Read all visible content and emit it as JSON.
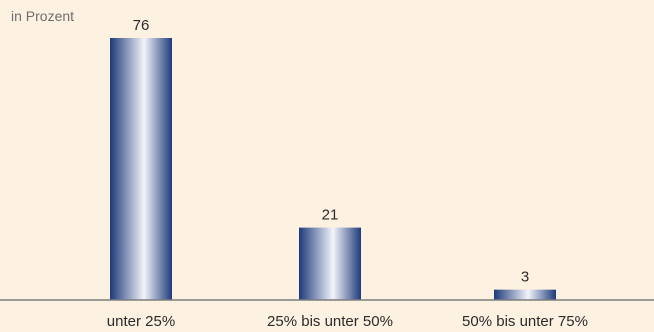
{
  "chart_data": {
    "type": "bar",
    "unit_label": "in Prozent",
    "categories": [
      "unter 25%",
      "25% bis unter 50%",
      "50% bis unter 75%"
    ],
    "values": [
      76,
      21,
      3
    ],
    "data_labels": [
      "76",
      "21",
      "3"
    ],
    "ylim": [
      0,
      76
    ],
    "grid": false,
    "colors": {
      "background": "#fdf1e1",
      "bar_dark": "#1f3a7a",
      "bar_light": "#f2f4fa",
      "axis": "#7d7d7d",
      "text": "#2b2b2b"
    }
  }
}
